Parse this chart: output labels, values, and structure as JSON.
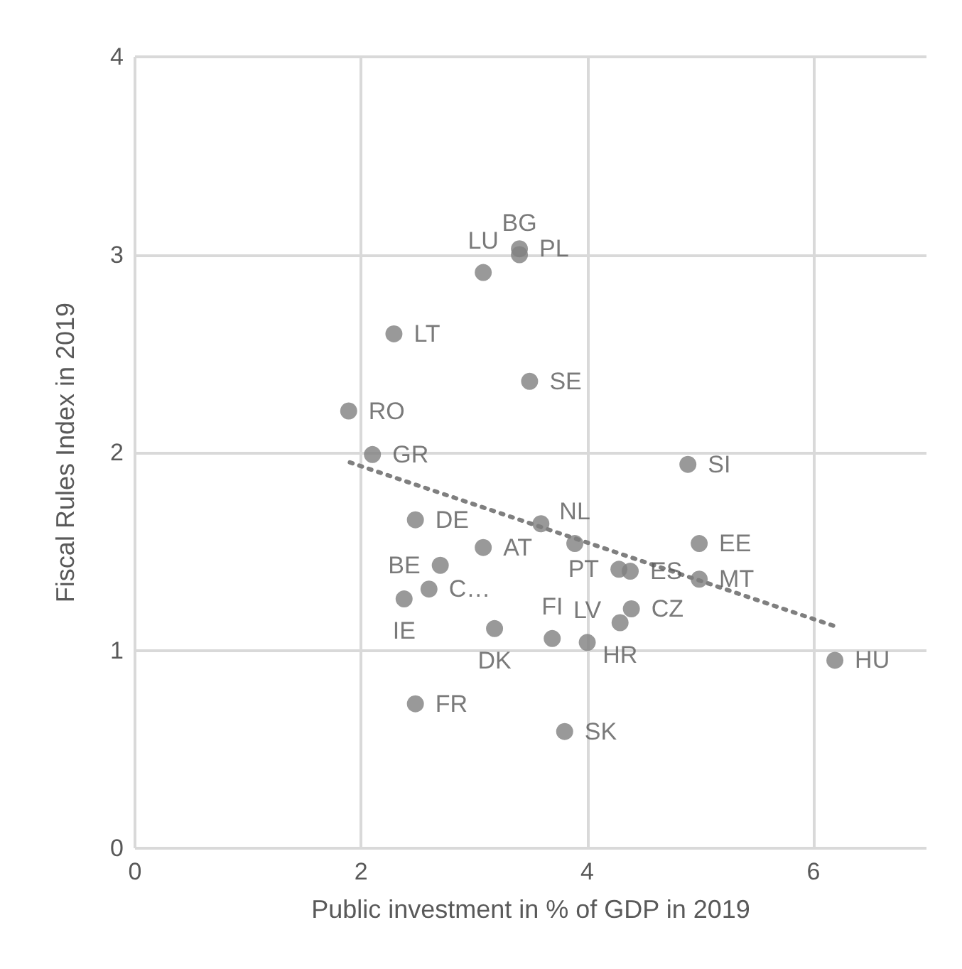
{
  "chart_data": {
    "type": "scatter",
    "xlabel": "Public investment in % of GDP in 2019",
    "ylabel": "Fiscal Rules Index in 2019",
    "xlim": [
      0,
      7
    ],
    "xticks": [
      0,
      2,
      4,
      6
    ],
    "ylim": [
      0,
      4
    ],
    "yticks": [
      0,
      1,
      2,
      3,
      4
    ],
    "grid": true,
    "marker": "circle",
    "series": [
      {
        "color": "#7f7f7f",
        "x": [
          3.4,
          3.4,
          3.08,
          2.29,
          3.49,
          1.89,
          2.1,
          4.89,
          2.48,
          3.59,
          3.08,
          3.89,
          2.7,
          2.6,
          2.38,
          3.18,
          3.69,
          4.0,
          4.29,
          4.39,
          4.28,
          4.38,
          4.99,
          4.99,
          6.19,
          2.48,
          3.8
        ],
        "values": [
          3.03,
          3.0,
          2.91,
          2.6,
          2.36,
          2.21,
          1.99,
          1.94,
          1.66,
          1.64,
          1.52,
          1.54,
          1.43,
          1.31,
          1.26,
          1.11,
          1.06,
          1.04,
          1.14,
          1.21,
          1.41,
          1.4,
          1.54,
          1.36,
          0.95,
          0.73,
          0.59
        ],
        "value_labels": [
          "PL",
          "BG",
          "LU",
          "LT",
          "SE",
          "RO",
          "GR",
          "SI",
          "DE",
          null,
          "AT",
          "NL",
          "BE",
          "C…",
          "IE",
          "DK",
          "FI",
          "LV",
          "HR",
          "CZ",
          "PT",
          "ES",
          "EE",
          "MT",
          "HU",
          "FR",
          "SK"
        ]
      },
      {
        "type": "line",
        "color": "#7f7f7f",
        "line_style": "dotted",
        "marker": "none",
        "x": [
          1.9,
          6.2
        ],
        "values": [
          1.95,
          1.12
        ]
      }
    ]
  }
}
